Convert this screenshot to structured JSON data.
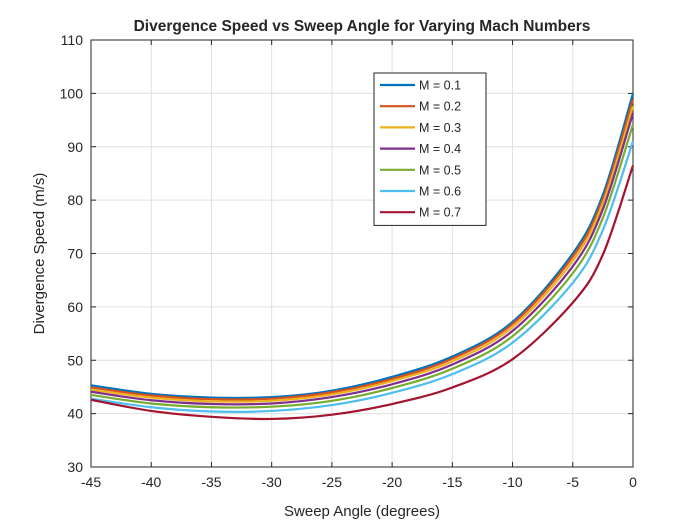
{
  "chart_data": {
    "type": "line",
    "title": "Divergence Speed vs Sweep Angle for Varying Mach Numbers",
    "xlabel": "Sweep Angle (degrees)",
    "ylabel": "Divergence Speed (m/s)",
    "xlim": [
      -45,
      0
    ],
    "ylim": [
      30,
      110
    ],
    "x_ticks": [
      -45,
      -40,
      -35,
      -30,
      -25,
      -20,
      -15,
      -10,
      -5,
      0
    ],
    "y_ticks": [
      30,
      40,
      50,
      60,
      70,
      80,
      90,
      100,
      110
    ],
    "grid": true,
    "legend_position": "top-right",
    "x": [
      -45,
      -40,
      -35,
      -30,
      -25,
      -20,
      -15,
      -10,
      -5,
      -2.5,
      0
    ],
    "series": [
      {
        "name": "M = 0.1",
        "color": "#0072BD",
        "values": [
          45.3,
          43.7,
          43.0,
          43.1,
          44.3,
          46.9,
          50.7,
          57.2,
          70.0,
          81.0,
          100.0
        ]
      },
      {
        "name": "M = 0.2",
        "color": "#D95319",
        "values": [
          44.9,
          43.4,
          42.7,
          42.8,
          44.0,
          46.5,
          50.3,
          56.8,
          69.4,
          80.2,
          98.9
        ]
      },
      {
        "name": "M = 0.3",
        "color": "#EDB120",
        "values": [
          44.5,
          43.0,
          42.3,
          42.4,
          43.6,
          46.1,
          49.8,
          56.2,
          68.6,
          79.4,
          97.6
        ]
      },
      {
        "name": "M = 0.4",
        "color": "#7E2F8E",
        "values": [
          44.1,
          42.5,
          41.8,
          41.9,
          43.1,
          45.5,
          49.2,
          55.5,
          67.6,
          78.3,
          96.3
        ]
      },
      {
        "name": "M = 0.5",
        "color": "#77AC30",
        "values": [
          43.5,
          41.9,
          41.2,
          41.3,
          42.4,
          44.8,
          48.4,
          54.5,
          66.3,
          76.7,
          94.2
        ]
      },
      {
        "name": "M = 0.6",
        "color": "#4DBEEE",
        "values": [
          42.8,
          41.2,
          40.4,
          40.5,
          41.6,
          43.9,
          47.4,
          53.3,
          64.5,
          74.4,
          91.0
        ]
      },
      {
        "name": "M = 0.7",
        "color": "#A2142F",
        "values": [
          42.6,
          40.5,
          39.4,
          39.0,
          39.8,
          41.8,
          44.9,
          50.2,
          60.8,
          69.8,
          86.5
        ]
      }
    ]
  }
}
